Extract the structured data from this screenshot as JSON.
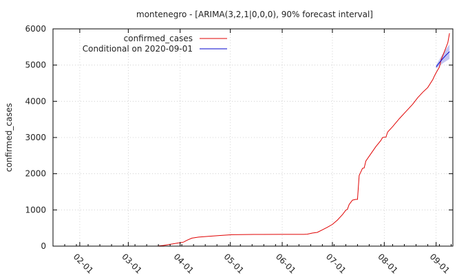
{
  "chart_data": {
    "type": "line",
    "title": "montenegro -  [ARIMA(3,2,1|0,0,0), 90% forecast interval]",
    "xlabel": "",
    "ylabel": "confirmed_cases",
    "xlim": [
      "2020-01-16",
      "2020-09-11"
    ],
    "ylim": [
      0,
      6000
    ],
    "y_ticks": [
      0,
      1000,
      2000,
      3000,
      4000,
      5000,
      6000
    ],
    "x_ticks": [
      "02-01",
      "03-01",
      "04-01",
      "05-01",
      "06-01",
      "07-01",
      "08-01",
      "09-01"
    ],
    "x_tick_dates": [
      "2020-02-01",
      "2020-03-01",
      "2020-04-01",
      "2020-05-01",
      "2020-06-01",
      "2020-07-01",
      "2020-08-01",
      "2020-09-01"
    ],
    "grid": true,
    "legend_position": "top-left",
    "series": [
      {
        "name": "confirmed_cases",
        "color": "#e00000",
        "points": [
          [
            "2020-03-18",
            0
          ],
          [
            "2020-03-22",
            20
          ],
          [
            "2020-03-26",
            50
          ],
          [
            "2020-03-30",
            80
          ],
          [
            "2020-04-03",
            110
          ],
          [
            "2020-04-05",
            160
          ],
          [
            "2020-04-08",
            220
          ],
          [
            "2020-04-12",
            250
          ],
          [
            "2020-04-18",
            270
          ],
          [
            "2020-04-25",
            295
          ],
          [
            "2020-05-02",
            315
          ],
          [
            "2020-05-15",
            322
          ],
          [
            "2020-06-01",
            324
          ],
          [
            "2020-06-14",
            324
          ],
          [
            "2020-06-16",
            330
          ],
          [
            "2020-06-19",
            360
          ],
          [
            "2020-06-22",
            380
          ],
          [
            "2020-06-25",
            450
          ],
          [
            "2020-06-28",
            520
          ],
          [
            "2020-07-01",
            600
          ],
          [
            "2020-07-04",
            720
          ],
          [
            "2020-07-07",
            870
          ],
          [
            "2020-07-09",
            990
          ],
          [
            "2020-07-10",
            1020
          ],
          [
            "2020-07-11",
            1150
          ],
          [
            "2020-07-13",
            1270
          ],
          [
            "2020-07-15",
            1290
          ],
          [
            "2020-07-16",
            1290
          ],
          [
            "2020-07-17",
            1950
          ],
          [
            "2020-07-18",
            2050
          ],
          [
            "2020-07-19",
            2150
          ],
          [
            "2020-07-20",
            2160
          ],
          [
            "2020-07-21",
            2350
          ],
          [
            "2020-07-24",
            2550
          ],
          [
            "2020-07-27",
            2750
          ],
          [
            "2020-07-30",
            2920
          ],
          [
            "2020-07-31",
            3000
          ],
          [
            "2020-08-02",
            3010
          ],
          [
            "2020-08-03",
            3150
          ],
          [
            "2020-08-06",
            3300
          ],
          [
            "2020-08-10",
            3520
          ],
          [
            "2020-08-14",
            3720
          ],
          [
            "2020-08-18",
            3920
          ],
          [
            "2020-08-21",
            4100
          ],
          [
            "2020-08-24",
            4250
          ],
          [
            "2020-08-27",
            4380
          ],
          [
            "2020-08-30",
            4600
          ],
          [
            "2020-08-31",
            4700
          ],
          [
            "2020-09-01",
            4790
          ],
          [
            "2020-09-03",
            4950
          ],
          [
            "2020-09-04",
            5150
          ],
          [
            "2020-09-06",
            5380
          ],
          [
            "2020-09-08",
            5620
          ],
          [
            "2020-09-09",
            5880
          ]
        ]
      },
      {
        "name": "Conditional on 2020-09-01",
        "color": "#0000cc",
        "band_color": "#c4c6f2",
        "points": [
          [
            "2020-09-01",
            4950
          ],
          [
            "2020-09-03",
            5070
          ],
          [
            "2020-09-05",
            5180
          ],
          [
            "2020-09-07",
            5280
          ],
          [
            "2020-09-09",
            5370
          ]
        ],
        "band": [
          [
            "2020-09-01",
            4900,
            5000
          ],
          [
            "2020-09-03",
            4980,
            5160
          ],
          [
            "2020-09-05",
            5050,
            5310
          ],
          [
            "2020-09-07",
            5110,
            5450
          ],
          [
            "2020-09-09",
            5170,
            5570
          ]
        ]
      }
    ]
  }
}
